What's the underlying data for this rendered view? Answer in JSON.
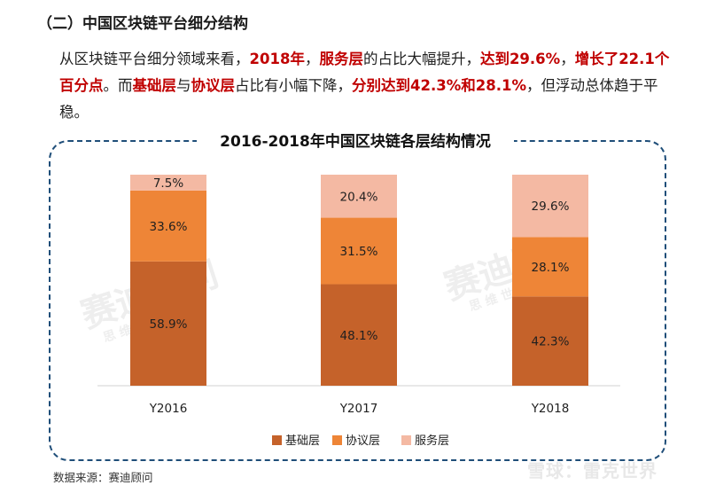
{
  "section_title": "（二）中国区块链平台细分结构",
  "intro": {
    "p1": "从区块链平台细分领域来看，",
    "h1": "2018年",
    "p2": "，",
    "h2": "服务层",
    "p3": "的占比大幅提升，",
    "h3": "达到29.6%",
    "p4": "，",
    "h4": "增长了22.1个百分点",
    "p5": "。而",
    "h5": "基础层",
    "p6": "与",
    "h6": "协议层",
    "p7": "占比有小幅下降，",
    "h7": "分别达到42.3%和28.1%",
    "p8": "，但浮动总体趋于平稳。"
  },
  "source": "数据来源：赛迪顾问",
  "watermark": "雪球：雷克世界",
  "bg_marks": {
    "brand": "赛迪顾问",
    "sub": "思 维 世 界"
  },
  "chart_data": {
    "type": "bar",
    "stacked": true,
    "title": "2016-2018年中国区块链各层结构情况",
    "categories": [
      "Y2016",
      "Y2017",
      "Y2018"
    ],
    "series": [
      {
        "name": "基础层",
        "color": "#c5622a",
        "values": [
          58.9,
          48.1,
          42.3
        ]
      },
      {
        "name": "协议层",
        "color": "#ee8537",
        "values": [
          33.6,
          31.5,
          28.1
        ]
      },
      {
        "name": "服务层",
        "color": "#f4b9a3",
        "values": [
          7.5,
          20.4,
          29.6
        ]
      }
    ],
    "value_suffix": "%",
    "ylim": [
      0,
      100
    ],
    "legend_position": "bottom",
    "grid": false
  }
}
